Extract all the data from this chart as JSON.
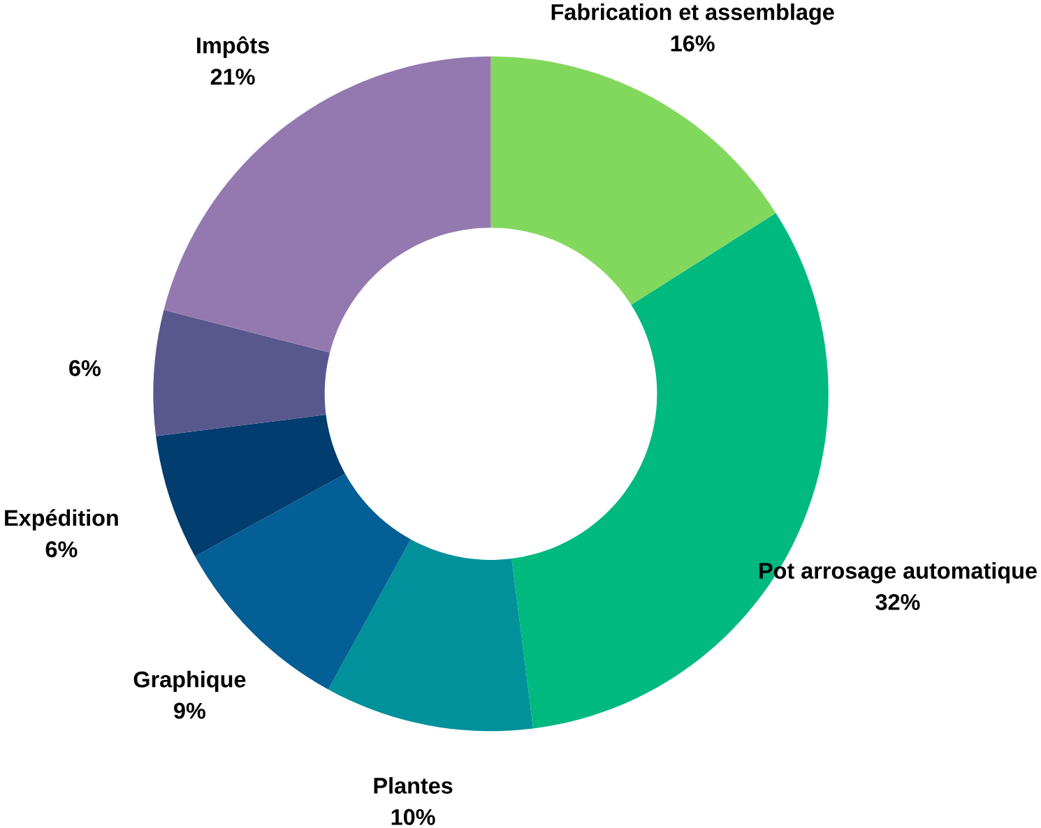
{
  "chart_data": {
    "type": "donut",
    "categories": [
      "Fabrication et assemblage",
      "Pot arrosage automatique",
      "Plantes",
      "Graphique",
      "Expédition",
      null,
      "Impôts"
    ],
    "values": [
      16,
      32,
      10,
      9,
      6,
      6,
      21
    ],
    "value_labels": [
      "16%",
      "32%",
      "10%",
      "9%",
      "6%",
      "6%",
      "21%"
    ],
    "colors": [
      "#82d85c",
      "#00b97f",
      "#00919a",
      "#035f95",
      "#023d6f",
      "#58588f",
      "#9479b0"
    ]
  }
}
